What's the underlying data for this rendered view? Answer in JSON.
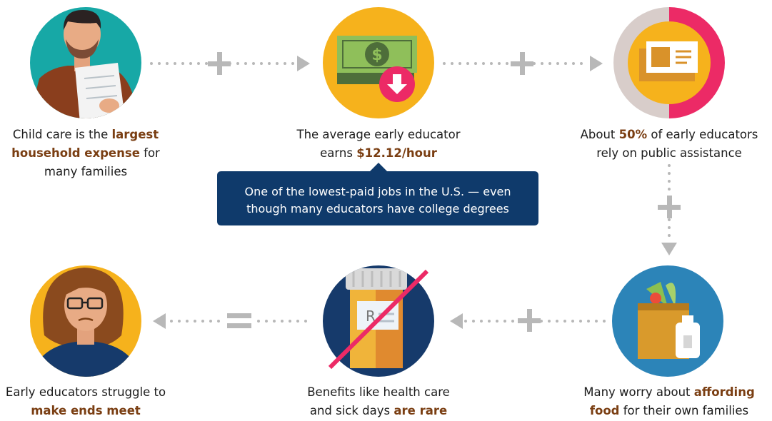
{
  "nodes": [
    {
      "caption": [
        [
          {
            "text": "Child care is the "
          },
          {
            "text": "largest",
            "bold": true
          }
        ],
        [
          {
            "text": "household expense",
            "bold": true
          },
          {
            "text": " for"
          }
        ],
        [
          {
            "text": "many families"
          }
        ]
      ]
    },
    {
      "caption": [
        [
          {
            "text": "The average early educator"
          }
        ],
        [
          {
            "text": "earns "
          },
          {
            "text": "$12.12/hour",
            "bold": true
          }
        ]
      ]
    },
    {
      "caption": [
        [
          {
            "text": "About "
          },
          {
            "text": "50%",
            "bold": true
          },
          {
            "text": " of early educators"
          }
        ],
        [
          {
            "text": "rely on public assistance"
          }
        ]
      ]
    },
    {
      "caption": [
        [
          {
            "text": "Many worry about "
          },
          {
            "text": "affording",
            "bold": true
          }
        ],
        [
          {
            "text": "food",
            "bold": true
          },
          {
            "text": " for their own families"
          }
        ]
      ]
    },
    {
      "caption": [
        [
          {
            "text": "Benefits like health care"
          }
        ],
        [
          {
            "text": "and sick days "
          },
          {
            "text": "are rare",
            "bold": true
          }
        ]
      ]
    },
    {
      "caption": [
        [
          {
            "text": "Early educators struggle to"
          }
        ],
        [
          {
            "text": "make ends meet",
            "bold": true
          }
        ]
      ]
    }
  ],
  "callout": {
    "lines": [
      "One of the lowest-paid jobs in the U.S. — even",
      "though many educators have college degrees"
    ]
  }
}
